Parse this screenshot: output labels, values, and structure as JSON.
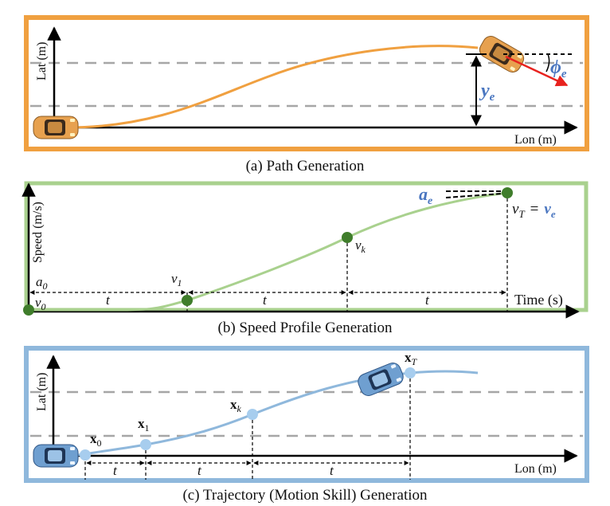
{
  "colors": {
    "path_orange": "#f0a040",
    "speed_green": "#a9d18e",
    "traj_blue": "#8fb8dc",
    "point_green": "#3f7d2b",
    "point_blue": "#a7cdee",
    "heading_red": "#e8231f",
    "math_blue": "#4a76c0",
    "lane_gray": "#a6a6a6"
  },
  "panel_a": {
    "y_axis": "Lat (m)",
    "x_axis": "Lon (m)",
    "lateral_error": "y",
    "lateral_error_sub": "e",
    "heading_error": "ϕ",
    "heading_error_sub": "e",
    "caption": "(a) Path Generation",
    "icons": [
      "car-start-icon",
      "car-end-icon"
    ]
  },
  "panel_b": {
    "y_axis": "Speed (m/s)",
    "x_axis": "Time (s)",
    "a0": "a",
    "a0_sub": "0",
    "v0": "v",
    "v0_sub": "0",
    "v1": "v",
    "v1_sub": "1",
    "vk": "v",
    "vk_sub": "k",
    "vT_left": "v",
    "vT_left_sub": "T",
    "eq": "=",
    "vT_right": "v",
    "vT_right_sub": "e",
    "ae": "a",
    "ae_sub": "e",
    "interval_1": "t",
    "interval_2": "t",
    "interval_3": "t",
    "caption": "(b) Speed Profile Generation"
  },
  "panel_c": {
    "y_axis": "Lat (m)",
    "x_axis": "Lon (m)",
    "x0": "x",
    "x0_sub": "0",
    "x1": "x",
    "x1_sub": "1",
    "xk": "x",
    "xk_sub": "k",
    "xT": "x",
    "xT_sub": "T",
    "interval_1": "t",
    "interval_2": "t",
    "interval_3": "t",
    "caption": "(c) Trajectory (Motion Skill) Generation",
    "icons": [
      "car-start-icon",
      "car-end-icon"
    ]
  }
}
